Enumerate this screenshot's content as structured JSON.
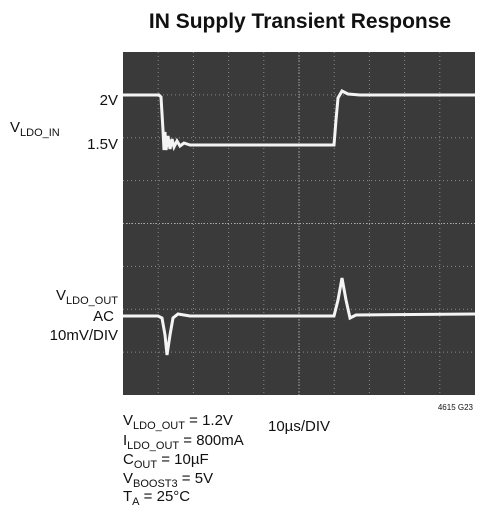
{
  "title": "IN Supply Transient Response",
  "left_labels": {
    "in_high": "2V",
    "in_name": {
      "main": "V",
      "sub": "LDO_IN"
    },
    "in_low": "1.5V",
    "out_name": {
      "main": "V",
      "sub": "LDO_OUT"
    },
    "out_coupling": "AC",
    "out_scale": "10mV/DIV"
  },
  "time_scale": "10µs/DIV",
  "figure_id": "4615 G23",
  "conditions": [
    {
      "main": "V",
      "sub": "LDO_OUT",
      "rest": " = 1.2V"
    },
    {
      "main": "I",
      "sub": "LDO_OUT",
      "rest": " = 800mA"
    },
    {
      "main": "C",
      "sub": "OUT",
      "rest": " = 10µF"
    },
    {
      "main": "V",
      "sub": "BOOST3",
      "rest": " = 5V"
    },
    {
      "main": "T",
      "sub": "A",
      "rest": " = 25°C"
    }
  ]
}
